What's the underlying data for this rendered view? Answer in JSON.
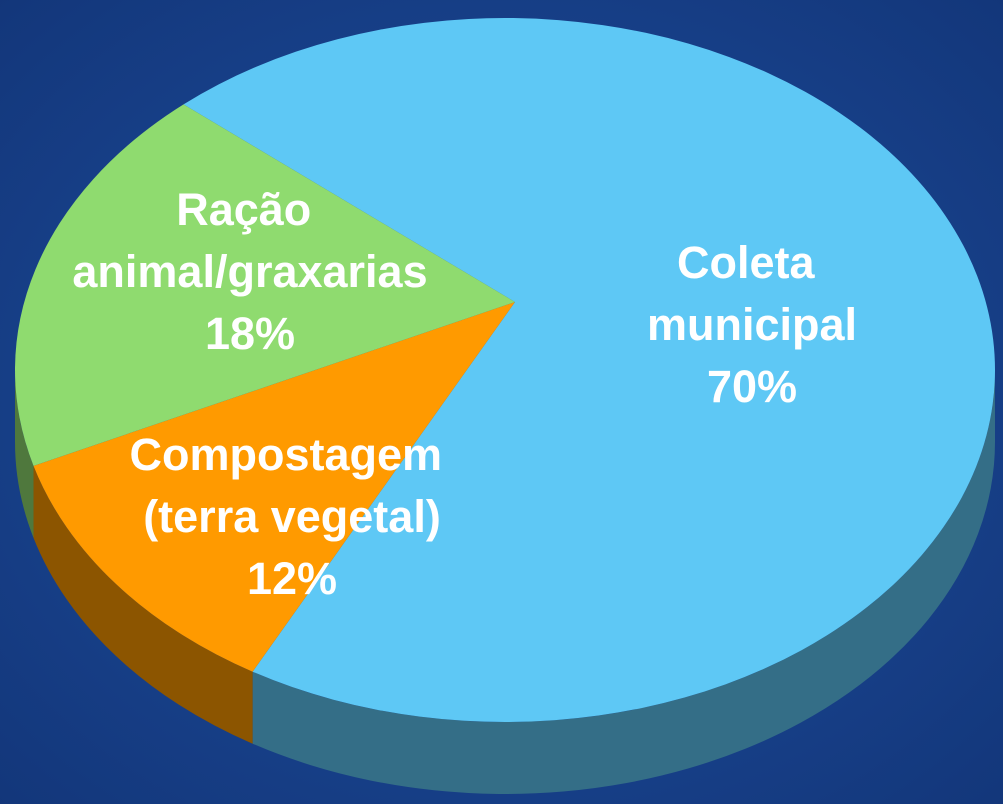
{
  "chart_data": {
    "type": "pie",
    "categories": [
      "Coleta municipal",
      "Compostagem (terra vegetal)",
      "Ração animal/graxarias"
    ],
    "values": [
      70,
      12,
      18
    ],
    "value_labels": [
      "70%",
      "12%",
      "18%"
    ],
    "colors": [
      "#5ec8f5",
      "#ff9a00",
      "#8fdb6f"
    ]
  }
}
